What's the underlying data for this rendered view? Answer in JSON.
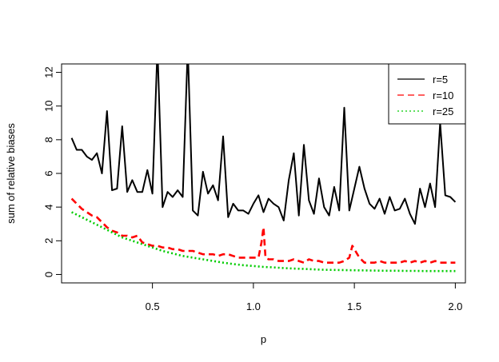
{
  "chart_data": {
    "type": "line",
    "xlabel": "p",
    "ylabel": "sum of relative biases",
    "xlim": [
      0.05,
      2.05
    ],
    "ylim": [
      -0.5,
      12.5
    ],
    "xticks": [
      "0.5",
      "1.0",
      "1.5",
      "2.0"
    ],
    "xtick_values": [
      0.5,
      1.0,
      1.5,
      2.0
    ],
    "yticks": [
      "0",
      "2",
      "4",
      "6",
      "8",
      "10",
      "12"
    ],
    "ytick_values": [
      0,
      2,
      4,
      6,
      8,
      10,
      12
    ],
    "legend_position": "top-right",
    "series": [
      {
        "name": "r=5",
        "color": "#000000",
        "dash": "solid",
        "x": [
          0.1,
          0.125,
          0.15,
          0.175,
          0.2,
          0.225,
          0.25,
          0.275,
          0.3,
          0.325,
          0.35,
          0.375,
          0.4,
          0.425,
          0.45,
          0.475,
          0.5,
          0.525,
          0.55,
          0.575,
          0.6,
          0.625,
          0.65,
          0.675,
          0.7,
          0.725,
          0.75,
          0.775,
          0.8,
          0.825,
          0.85,
          0.875,
          0.9,
          0.925,
          0.95,
          0.975,
          1.0,
          1.025,
          1.05,
          1.075,
          1.1,
          1.125,
          1.15,
          1.175,
          1.2,
          1.225,
          1.25,
          1.275,
          1.3,
          1.325,
          1.35,
          1.375,
          1.4,
          1.425,
          1.45,
          1.475,
          1.5,
          1.525,
          1.55,
          1.575,
          1.6,
          1.625,
          1.65,
          1.675,
          1.7,
          1.725,
          1.75,
          1.775,
          1.8,
          1.825,
          1.85,
          1.875,
          1.9,
          1.925,
          1.95,
          1.975,
          2.0
        ],
        "values": [
          8.1,
          7.4,
          7.4,
          7.0,
          6.8,
          7.2,
          6.0,
          9.7,
          5.0,
          5.1,
          8.8,
          4.9,
          5.6,
          4.9,
          4.9,
          6.2,
          4.8,
          13.5,
          4.0,
          4.9,
          4.6,
          5.0,
          4.6,
          13.5,
          3.8,
          3.5,
          6.1,
          4.8,
          5.3,
          4.4,
          8.2,
          3.4,
          4.2,
          3.8,
          3.8,
          3.6,
          4.2,
          4.7,
          3.7,
          4.5,
          4.2,
          4.0,
          3.2,
          5.6,
          7.2,
          3.5,
          7.7,
          4.4,
          3.6,
          5.7,
          4.0,
          3.5,
          5.2,
          3.8,
          9.9,
          3.8,
          5.1,
          6.4,
          5.1,
          4.2,
          3.9,
          4.5,
          3.6,
          4.6,
          3.8,
          3.9,
          4.5,
          3.6,
          3.0,
          5.1,
          4.0,
          5.4,
          4.0,
          9.0,
          4.7,
          4.6,
          4.3
        ]
      },
      {
        "name": "r=10",
        "color": "#ff0000",
        "dash": "dashed",
        "x": [
          0.1,
          0.125,
          0.15,
          0.175,
          0.2,
          0.225,
          0.25,
          0.275,
          0.3,
          0.325,
          0.35,
          0.375,
          0.4,
          0.425,
          0.45,
          0.475,
          0.5,
          0.525,
          0.55,
          0.575,
          0.6,
          0.625,
          0.65,
          0.675,
          0.7,
          0.725,
          0.75,
          0.775,
          0.8,
          0.825,
          0.85,
          0.875,
          0.9,
          0.925,
          0.95,
          0.975,
          1.0,
          1.025,
          1.04,
          1.05,
          1.06,
          1.075,
          1.1,
          1.125,
          1.15,
          1.175,
          1.2,
          1.225,
          1.25,
          1.275,
          1.3,
          1.325,
          1.35,
          1.375,
          1.4,
          1.425,
          1.45,
          1.475,
          1.49,
          1.5,
          1.525,
          1.55,
          1.575,
          1.6,
          1.625,
          1.65,
          1.675,
          1.7,
          1.725,
          1.75,
          1.775,
          1.8,
          1.825,
          1.85,
          1.875,
          1.9,
          1.925,
          1.95,
          1.975,
          2.0
        ],
        "values": [
          4.5,
          4.2,
          3.9,
          3.7,
          3.5,
          3.4,
          3.1,
          2.8,
          2.6,
          2.5,
          2.3,
          2.3,
          2.2,
          2.3,
          1.9,
          1.8,
          1.7,
          1.7,
          1.6,
          1.6,
          1.5,
          1.5,
          1.4,
          1.4,
          1.4,
          1.3,
          1.2,
          1.2,
          1.2,
          1.1,
          1.2,
          1.2,
          1.1,
          1.0,
          1.0,
          1.0,
          1.0,
          1.0,
          1.9,
          2.8,
          1.0,
          0.9,
          0.9,
          0.8,
          0.8,
          0.8,
          0.9,
          0.8,
          0.7,
          0.9,
          0.8,
          0.8,
          0.7,
          0.7,
          0.7,
          0.7,
          0.8,
          1.0,
          1.7,
          1.5,
          1.0,
          0.7,
          0.7,
          0.7,
          0.8,
          0.7,
          0.7,
          0.7,
          0.7,
          0.8,
          0.7,
          0.8,
          0.7,
          0.8,
          0.7,
          0.8,
          0.7,
          0.7,
          0.7,
          0.7
        ]
      },
      {
        "name": "r=25",
        "color": "#00cc00",
        "dash": "dotted",
        "x": [
          0.1,
          0.15,
          0.2,
          0.25,
          0.3,
          0.35,
          0.4,
          0.45,
          0.5,
          0.55,
          0.6,
          0.65,
          0.7,
          0.75,
          0.8,
          0.85,
          0.9,
          0.95,
          1.0,
          1.05,
          1.1,
          1.15,
          1.2,
          1.25,
          1.3,
          1.35,
          1.4,
          1.45,
          1.5,
          1.55,
          1.6,
          1.65,
          1.7,
          1.75,
          1.8,
          1.85,
          1.9,
          1.95,
          2.0
        ],
        "values": [
          3.7,
          3.4,
          3.1,
          2.8,
          2.5,
          2.2,
          2.0,
          1.8,
          1.6,
          1.4,
          1.25,
          1.1,
          1.0,
          0.9,
          0.8,
          0.7,
          0.62,
          0.55,
          0.5,
          0.45,
          0.42,
          0.38,
          0.35,
          0.33,
          0.3,
          0.28,
          0.27,
          0.26,
          0.25,
          0.24,
          0.23,
          0.22,
          0.22,
          0.21,
          0.21,
          0.2,
          0.2,
          0.2,
          0.2
        ]
      }
    ]
  }
}
